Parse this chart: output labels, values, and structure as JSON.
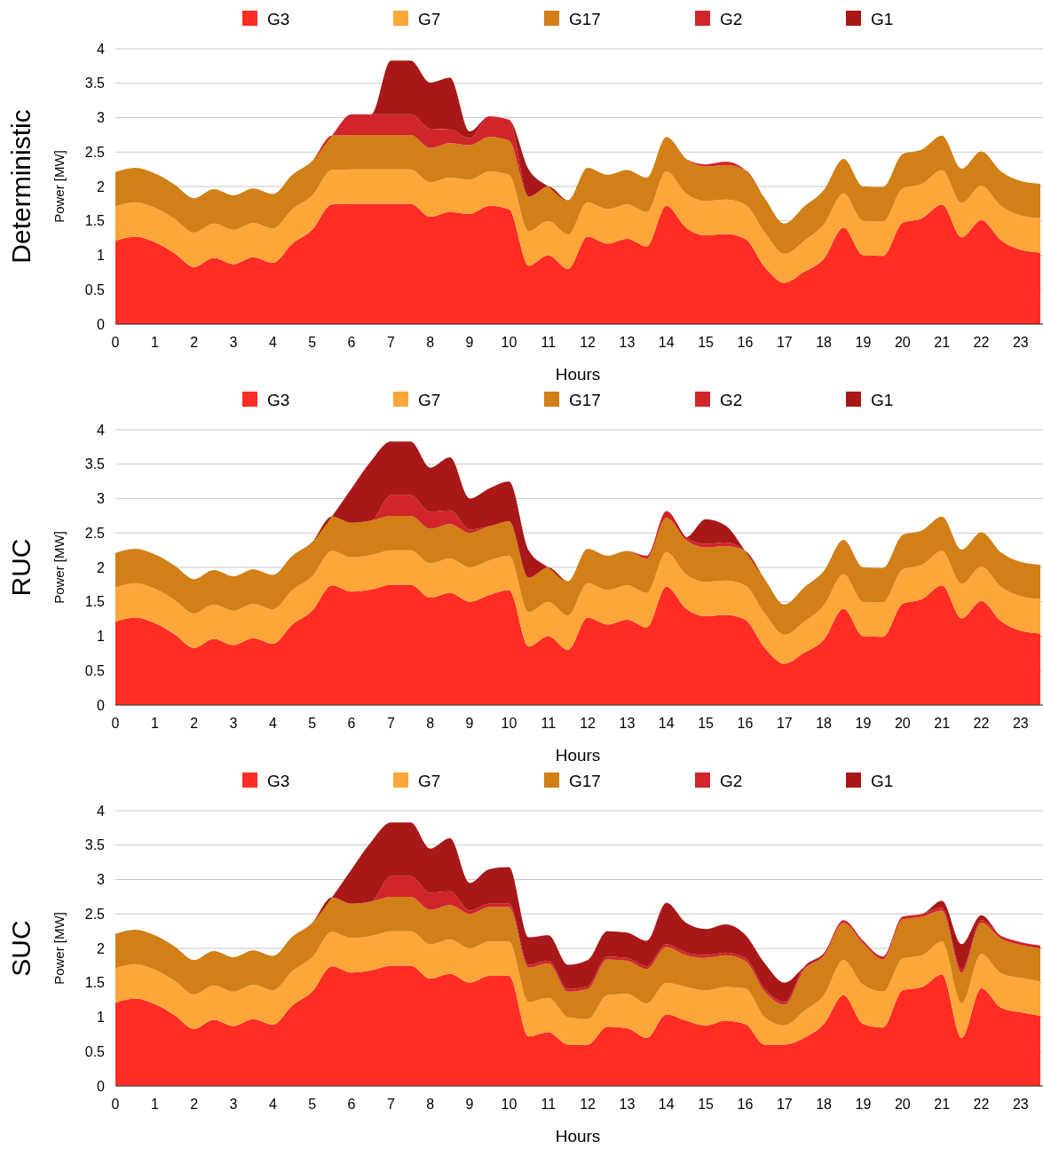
{
  "chart_data": [
    {
      "type": "area",
      "stacked": true,
      "title": "Deterministic",
      "xlabel": "Hours",
      "ylabel": "Power [MW]",
      "legend": "top",
      "grid": "y",
      "xlim": [
        0,
        23.5
      ],
      "ylim": [
        0,
        4
      ],
      "xticks": [
        0,
        1,
        2,
        3,
        4,
        5,
        6,
        7,
        8,
        9,
        10,
        11,
        12,
        13,
        14,
        15,
        16,
        17,
        18,
        19,
        20,
        21,
        22,
        23
      ],
      "yticks": [
        0,
        0.5,
        1,
        1.5,
        2,
        2.5,
        3,
        3.5,
        4
      ],
      "x": [
        0,
        0.5,
        1,
        1.5,
        2,
        2.5,
        3,
        3.5,
        4,
        4.5,
        5,
        5.5,
        6,
        6.5,
        7,
        7.5,
        8,
        8.5,
        9,
        9.5,
        10,
        10.5,
        11,
        11.5,
        12,
        12.5,
        13,
        13.5,
        14,
        14.5,
        15,
        15.5,
        16,
        16.5,
        17,
        17.5,
        18,
        18.5,
        19,
        19.5,
        20,
        20.5,
        21,
        21.5,
        22,
        22.5,
        23,
        23.5
      ],
      "series": [
        {
          "name": "G3",
          "color": "#ff2d24",
          "values": [
            1.21,
            1.27,
            1.19,
            1.03,
            0.83,
            0.96,
            0.87,
            0.97,
            0.89,
            1.17,
            1.37,
            1.74,
            1.75,
            1.75,
            1.75,
            1.75,
            1.56,
            1.63,
            1.6,
            1.72,
            1.67,
            0.85,
            1.0,
            0.8,
            1.27,
            1.17,
            1.24,
            1.13,
            1.72,
            1.4,
            1.29,
            1.31,
            1.24,
            0.83,
            0.6,
            0.76,
            0.95,
            1.4,
            1.0,
            0.99,
            1.47,
            1.54,
            1.74,
            1.26,
            1.51,
            1.22,
            1.08,
            1.04
          ]
        },
        {
          "name": "G7",
          "color": "#fda63a",
          "values": [
            0.5,
            0.5,
            0.5,
            0.5,
            0.5,
            0.5,
            0.5,
            0.5,
            0.5,
            0.5,
            0.5,
            0.5,
            0.5,
            0.5,
            0.5,
            0.5,
            0.5,
            0.5,
            0.5,
            0.5,
            0.5,
            0.5,
            0.5,
            0.5,
            0.5,
            0.5,
            0.5,
            0.5,
            0.5,
            0.5,
            0.5,
            0.5,
            0.5,
            0.5,
            0.42,
            0.45,
            0.5,
            0.5,
            0.5,
            0.5,
            0.5,
            0.5,
            0.5,
            0.5,
            0.5,
            0.5,
            0.5,
            0.5
          ]
        },
        {
          "name": "G17",
          "color": "#d17f17",
          "values": [
            0.5,
            0.5,
            0.5,
            0.5,
            0.5,
            0.5,
            0.5,
            0.5,
            0.5,
            0.5,
            0.5,
            0.5,
            0.5,
            0.5,
            0.5,
            0.5,
            0.5,
            0.5,
            0.5,
            0.5,
            0.5,
            0.5,
            0.5,
            0.5,
            0.5,
            0.5,
            0.5,
            0.5,
            0.5,
            0.5,
            0.5,
            0.5,
            0.5,
            0.5,
            0.44,
            0.5,
            0.5,
            0.5,
            0.5,
            0.5,
            0.5,
            0.5,
            0.5,
            0.5,
            0.5,
            0.5,
            0.5,
            0.5
          ]
        },
        {
          "name": "G2",
          "color": "#cf252b",
          "values": [
            0,
            0,
            0,
            0,
            0,
            0,
            0,
            0,
            0,
            0,
            0,
            0,
            0.3,
            0.3,
            0.3,
            0.3,
            0.28,
            0.2,
            0.1,
            0.3,
            0.3,
            0,
            0,
            0,
            0,
            0,
            0,
            0,
            0,
            0,
            0.03,
            0.05,
            0,
            0,
            0,
            0,
            0,
            0,
            0,
            0,
            0,
            0,
            0,
            0,
            0,
            0,
            0,
            0
          ]
        },
        {
          "name": "G1",
          "color": "#a91818",
          "values": [
            0,
            0,
            0,
            0,
            0,
            0,
            0,
            0,
            0,
            0,
            0,
            0,
            0,
            0,
            0.78,
            0.78,
            0.67,
            0.75,
            0.1,
            0,
            0,
            0.4,
            0,
            0,
            0,
            0,
            0,
            0,
            0,
            0,
            0,
            0,
            0,
            0,
            0,
            0,
            0,
            0,
            0,
            0,
            0,
            0,
            0,
            0,
            0,
            0,
            0,
            0
          ]
        }
      ]
    },
    {
      "type": "area",
      "stacked": true,
      "title": "RUC",
      "xlabel": "Hours",
      "ylabel": "Power [MW]",
      "legend": "top",
      "grid": "y",
      "xlim": [
        0,
        23.5
      ],
      "ylim": [
        0,
        4
      ],
      "xticks": [
        0,
        1,
        2,
        3,
        4,
        5,
        6,
        7,
        8,
        9,
        10,
        11,
        12,
        13,
        14,
        15,
        16,
        17,
        18,
        19,
        20,
        21,
        22,
        23
      ],
      "yticks": [
        0,
        0.5,
        1,
        1.5,
        2,
        2.5,
        3,
        3.5,
        4
      ],
      "x": [
        0,
        0.5,
        1,
        1.5,
        2,
        2.5,
        3,
        3.5,
        4,
        4.5,
        5,
        5.5,
        6,
        6.5,
        7,
        7.5,
        8,
        8.5,
        9,
        9.5,
        10,
        10.5,
        11,
        11.5,
        12,
        12.5,
        13,
        13.5,
        14,
        14.5,
        15,
        15.5,
        16,
        16.5,
        17,
        17.5,
        18,
        18.5,
        19,
        19.5,
        20,
        20.5,
        21,
        21.5,
        22,
        22.5,
        23,
        23.5
      ],
      "series": [
        {
          "name": "G3",
          "color": "#ff2d24",
          "values": [
            1.21,
            1.27,
            1.19,
            1.03,
            0.83,
            0.96,
            0.87,
            0.97,
            0.89,
            1.17,
            1.37,
            1.74,
            1.65,
            1.68,
            1.75,
            1.75,
            1.56,
            1.63,
            1.5,
            1.6,
            1.67,
            0.85,
            1.0,
            0.8,
            1.27,
            1.17,
            1.24,
            1.13,
            1.72,
            1.4,
            1.29,
            1.31,
            1.24,
            0.83,
            0.6,
            0.76,
            0.95,
            1.4,
            1.0,
            0.99,
            1.47,
            1.54,
            1.74,
            1.26,
            1.51,
            1.22,
            1.08,
            1.04
          ]
        },
        {
          "name": "G7",
          "color": "#fda63a",
          "values": [
            0.5,
            0.5,
            0.5,
            0.5,
            0.5,
            0.5,
            0.5,
            0.5,
            0.5,
            0.5,
            0.5,
            0.5,
            0.5,
            0.5,
            0.5,
            0.5,
            0.5,
            0.5,
            0.5,
            0.5,
            0.5,
            0.5,
            0.5,
            0.5,
            0.5,
            0.5,
            0.5,
            0.5,
            0.5,
            0.5,
            0.5,
            0.5,
            0.5,
            0.5,
            0.42,
            0.45,
            0.5,
            0.5,
            0.5,
            0.5,
            0.5,
            0.5,
            0.5,
            0.5,
            0.5,
            0.5,
            0.5,
            0.5
          ]
        },
        {
          "name": "G17",
          "color": "#d17f17",
          "values": [
            0.5,
            0.5,
            0.5,
            0.5,
            0.5,
            0.5,
            0.5,
            0.5,
            0.5,
            0.5,
            0.5,
            0.5,
            0.5,
            0.5,
            0.5,
            0.5,
            0.5,
            0.5,
            0.5,
            0.5,
            0.5,
            0.5,
            0.5,
            0.5,
            0.5,
            0.5,
            0.5,
            0.5,
            0.5,
            0.5,
            0.5,
            0.5,
            0.5,
            0.5,
            0.44,
            0.5,
            0.5,
            0.5,
            0.5,
            0.5,
            0.5,
            0.5,
            0.5,
            0.5,
            0.5,
            0.5,
            0.5,
            0.5
          ]
        },
        {
          "name": "G2",
          "color": "#cf252b",
          "values": [
            0,
            0,
            0,
            0,
            0,
            0,
            0,
            0,
            0,
            0,
            0,
            0,
            0,
            0,
            0.3,
            0.3,
            0.25,
            0.2,
            0.05,
            0,
            0,
            0,
            0,
            0,
            0,
            0,
            0,
            0.04,
            0.1,
            0.04,
            0.05,
            0.05,
            0,
            0,
            0,
            0,
            0,
            0,
            0,
            0,
            0,
            0,
            0,
            0,
            0,
            0,
            0,
            0
          ]
        },
        {
          "name": "G1",
          "color": "#a91818",
          "values": [
            0,
            0,
            0,
            0,
            0,
            0,
            0,
            0,
            0,
            0,
            0,
            0,
            0.5,
            0.87,
            0.78,
            0.78,
            0.64,
            0.77,
            0.45,
            0.55,
            0.58,
            0.4,
            0,
            0,
            0,
            0,
            0,
            0,
            0,
            0,
            0.36,
            0.25,
            0,
            0,
            0,
            0,
            0,
            0,
            0,
            0,
            0,
            0,
            0,
            0,
            0,
            0,
            0,
            0
          ]
        }
      ]
    },
    {
      "type": "area",
      "stacked": true,
      "title": "SUC",
      "xlabel": "Hours",
      "ylabel": "Power [MW]",
      "legend": "top",
      "grid": "y",
      "xlim": [
        0,
        23.5
      ],
      "ylim": [
        0,
        4
      ],
      "xticks": [
        0,
        1,
        2,
        3,
        4,
        5,
        6,
        7,
        8,
        9,
        10,
        11,
        12,
        13,
        14,
        15,
        16,
        17,
        18,
        19,
        20,
        21,
        22,
        23
      ],
      "yticks": [
        0,
        0.5,
        1,
        1.5,
        2,
        2.5,
        3,
        3.5,
        4
      ],
      "x": [
        0,
        0.5,
        1,
        1.5,
        2,
        2.5,
        3,
        3.5,
        4,
        4.5,
        5,
        5.5,
        6,
        6.5,
        7,
        7.5,
        8,
        8.5,
        9,
        9.5,
        10,
        10.5,
        11,
        11.5,
        12,
        12.5,
        13,
        13.5,
        14,
        14.5,
        15,
        15.5,
        16,
        16.5,
        17,
        17.5,
        18,
        18.5,
        19,
        19.5,
        20,
        20.5,
        21,
        21.5,
        22,
        22.5,
        23,
        23.5
      ],
      "series": [
        {
          "name": "G3",
          "color": "#ff2d24",
          "values": [
            1.21,
            1.27,
            1.19,
            1.03,
            0.83,
            0.96,
            0.87,
            0.97,
            0.89,
            1.17,
            1.37,
            1.74,
            1.65,
            1.68,
            1.75,
            1.75,
            1.56,
            1.63,
            1.5,
            1.6,
            1.6,
            0.72,
            0.78,
            0.6,
            0.6,
            0.86,
            0.84,
            0.7,
            1.04,
            0.95,
            0.88,
            0.95,
            0.9,
            0.6,
            0.6,
            0.7,
            0.9,
            1.32,
            0.9,
            0.85,
            1.39,
            1.44,
            1.62,
            0.7,
            1.42,
            1.14,
            1.07,
            1.02
          ]
        },
        {
          "name": "G7",
          "color": "#fda63a",
          "values": [
            0.5,
            0.5,
            0.5,
            0.5,
            0.5,
            0.5,
            0.5,
            0.5,
            0.5,
            0.5,
            0.5,
            0.5,
            0.5,
            0.5,
            0.5,
            0.5,
            0.5,
            0.5,
            0.5,
            0.5,
            0.5,
            0.5,
            0.5,
            0.4,
            0.37,
            0.46,
            0.5,
            0.5,
            0.46,
            0.49,
            0.51,
            0.49,
            0.52,
            0.4,
            0.28,
            0.39,
            0.42,
            0.51,
            0.57,
            0.52,
            0.46,
            0.46,
            0.48,
            0.5,
            0.5,
            0.5,
            0.5,
            0.5
          ]
        },
        {
          "name": "G17",
          "color": "#d17f17",
          "values": [
            0.5,
            0.5,
            0.5,
            0.5,
            0.5,
            0.5,
            0.5,
            0.5,
            0.5,
            0.5,
            0.5,
            0.5,
            0.5,
            0.5,
            0.5,
            0.5,
            0.5,
            0.5,
            0.5,
            0.5,
            0.5,
            0.5,
            0.5,
            0.37,
            0.44,
            0.52,
            0.48,
            0.5,
            0.52,
            0.46,
            0.47,
            0.46,
            0.4,
            0.37,
            0.3,
            0.6,
            0.57,
            0.54,
            0.6,
            0.47,
            0.57,
            0.56,
            0.45,
            0.45,
            0.45,
            0.5,
            0.48,
            0.48
          ]
        },
        {
          "name": "G2",
          "color": "#cf252b",
          "values": [
            0,
            0,
            0,
            0,
            0,
            0,
            0,
            0,
            0,
            0,
            0,
            0,
            0,
            0,
            0.3,
            0.3,
            0.25,
            0.2,
            0.05,
            0.05,
            0.05,
            0.04,
            0.04,
            0.04,
            0.04,
            0.04,
            0.04,
            0.04,
            0.04,
            0.04,
            0.04,
            0.04,
            0.04,
            0.04,
            0.04,
            0.04,
            0.04,
            0.04,
            0.04,
            0.04,
            0.04,
            0.04,
            0.04,
            0.04,
            0.04,
            0.04,
            0.04,
            0.04
          ]
        },
        {
          "name": "G1",
          "color": "#a91818",
          "values": [
            0,
            0,
            0,
            0,
            0,
            0,
            0,
            0,
            0,
            0,
            0,
            0,
            0.5,
            0.87,
            0.78,
            0.78,
            0.64,
            0.77,
            0.4,
            0.5,
            0.53,
            0.4,
            0.37,
            0.35,
            0.38,
            0.37,
            0.37,
            0.37,
            0.6,
            0.43,
            0.38,
            0.41,
            0.34,
            0.37,
            0.28,
            0,
            0,
            0,
            0,
            0,
            0,
            0,
            0.1,
            0.37,
            0.07,
            0,
            0,
            0
          ]
        }
      ]
    }
  ]
}
